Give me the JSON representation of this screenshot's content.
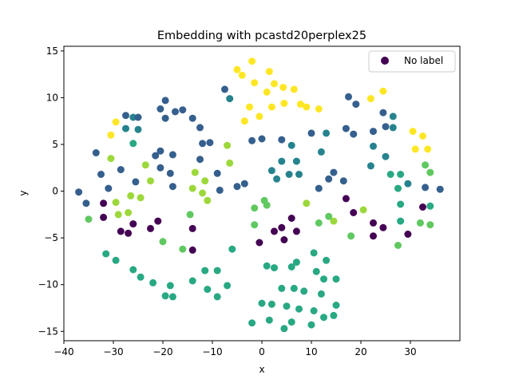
{
  "chart_data": {
    "type": "scatter",
    "title": "Embedding with pcastd20perplex25",
    "xlabel": "x",
    "ylabel": "y",
    "xlim": [
      -40,
      40
    ],
    "ylim": [
      -16,
      15.5
    ],
    "xticks": [
      -40,
      -30,
      -20,
      -10,
      0,
      10,
      20,
      30
    ],
    "yticks": [
      -15,
      -10,
      -5,
      0,
      5,
      10,
      15
    ],
    "grid": false,
    "legend": {
      "entries": [
        "No label"
      ],
      "position": "top-right",
      "marker_color": "#440154"
    },
    "colormap": "viridis",
    "points": [
      {
        "x": -2,
        "y": 13.9,
        "c": 1.0
      },
      {
        "x": -5,
        "y": 13.0,
        "c": 1.0
      },
      {
        "x": -4,
        "y": 12.4,
        "c": 1.0
      },
      {
        "x": 1.5,
        "y": 12.8,
        "c": 1.0
      },
      {
        "x": -1.5,
        "y": 11.6,
        "c": 1.0
      },
      {
        "x": 2.5,
        "y": 11.5,
        "c": 1.0
      },
      {
        "x": 4.3,
        "y": 11.1,
        "c": 1.0
      },
      {
        "x": 6.5,
        "y": 10.9,
        "c": 1.0
      },
      {
        "x": 1.0,
        "y": 10.6,
        "c": 1.0
      },
      {
        "x": 4.5,
        "y": 9.4,
        "c": 1.0
      },
      {
        "x": 2.0,
        "y": 9.0,
        "c": 1.0
      },
      {
        "x": -2.5,
        "y": 9.0,
        "c": 1.0
      },
      {
        "x": -0.5,
        "y": 8.0,
        "c": 1.0
      },
      {
        "x": -3.5,
        "y": 7.5,
        "c": 1.0
      },
      {
        "x": 7.8,
        "y": 9.3,
        "c": 1.0
      },
      {
        "x": 9.0,
        "y": 9.0,
        "c": 1.0
      },
      {
        "x": 11.5,
        "y": 8.8,
        "c": 1.0
      },
      {
        "x": 22.0,
        "y": 9.9,
        "c": 1.0
      },
      {
        "x": 24.5,
        "y": 10.7,
        "c": 1.0
      },
      {
        "x": -29.5,
        "y": 7.4,
        "c": 1.0
      },
      {
        "x": -30.5,
        "y": 6.0,
        "c": 1.0
      },
      {
        "x": 30.5,
        "y": 6.4,
        "c": 1.0
      },
      {
        "x": 32.5,
        "y": 5.9,
        "c": 1.0
      },
      {
        "x": 31.0,
        "y": 4.5,
        "c": 1.0
      },
      {
        "x": 33.5,
        "y": 4.5,
        "c": 1.0
      },
      {
        "x": -30.5,
        "y": 3.5,
        "c": 0.85
      },
      {
        "x": -23.5,
        "y": 2.8,
        "c": 0.85
      },
      {
        "x": -7,
        "y": 4.9,
        "c": 0.85
      },
      {
        "x": -6.5,
        "y": 3.0,
        "c": 0.85
      },
      {
        "x": 9.0,
        "y": -1.3,
        "c": 0.85
      },
      {
        "x": 14.5,
        "y": -3.2,
        "c": 0.85
      },
      {
        "x": 20.5,
        "y": -2.0,
        "c": 0.85
      },
      {
        "x": -22.5,
        "y": 1.1,
        "c": 0.85
      },
      {
        "x": -11.5,
        "y": 1.1,
        "c": 0.85
      },
      {
        "x": -12.0,
        "y": -0.2,
        "c": 0.85
      },
      {
        "x": -11.0,
        "y": -1.0,
        "c": 0.85
      },
      {
        "x": -14.0,
        "y": 0.3,
        "c": 0.85
      },
      {
        "x": -13.5,
        "y": 2.0,
        "c": 0.85
      },
      {
        "x": -24.5,
        "y": -0.7,
        "c": 0.85
      },
      {
        "x": -26.5,
        "y": -0.5,
        "c": 0.85
      },
      {
        "x": -27.0,
        "y": -2.3,
        "c": 0.85
      },
      {
        "x": -29.0,
        "y": -2.5,
        "c": 0.85
      },
      {
        "x": -29.5,
        "y": -1.2,
        "c": 0.85
      },
      {
        "x": -35.0,
        "y": -3.0,
        "c": 0.75
      },
      {
        "x": -14.5,
        "y": -2.5,
        "c": 0.75
      },
      {
        "x": -16.0,
        "y": -6.2,
        "c": 0.75
      },
      {
        "x": -20.0,
        "y": -5.4,
        "c": 0.75
      },
      {
        "x": 1.0,
        "y": -1.5,
        "c": 0.75
      },
      {
        "x": -1.5,
        "y": -1.8,
        "c": 0.75
      },
      {
        "x": -1.5,
        "y": -3.6,
        "c": 0.75
      },
      {
        "x": 11.5,
        "y": -3.4,
        "c": 0.75
      },
      {
        "x": 13.5,
        "y": -2.7,
        "c": 0.75
      },
      {
        "x": 18.0,
        "y": -4.8,
        "c": 0.75
      },
      {
        "x": 33.0,
        "y": 2.8,
        "c": 0.75
      },
      {
        "x": 34.0,
        "y": 2.0,
        "c": 0.75
      },
      {
        "x": 32.0,
        "y": -3.4,
        "c": 0.75
      },
      {
        "x": 34.0,
        "y": -3.6,
        "c": 0.75
      },
      {
        "x": 27.5,
        "y": -5.8,
        "c": 0.75
      },
      {
        "x": 0.5,
        "y": -1.0,
        "c": 0.75
      },
      {
        "x": -31.5,
        "y": -6.7,
        "c": 0.6
      },
      {
        "x": -29.5,
        "y": -7.4,
        "c": 0.6
      },
      {
        "x": -26.0,
        "y": -8.4,
        "c": 0.6
      },
      {
        "x": -24.5,
        "y": -9.2,
        "c": 0.6
      },
      {
        "x": -22.0,
        "y": -9.8,
        "c": 0.6
      },
      {
        "x": -19.5,
        "y": -11.2,
        "c": 0.6
      },
      {
        "x": -18.0,
        "y": -11.3,
        "c": 0.6
      },
      {
        "x": -18.5,
        "y": -10.1,
        "c": 0.6
      },
      {
        "x": -14.0,
        "y": -9.6,
        "c": 0.6
      },
      {
        "x": -11.5,
        "y": -8.5,
        "c": 0.6
      },
      {
        "x": -9.0,
        "y": -8.5,
        "c": 0.6
      },
      {
        "x": -11.0,
        "y": -10.5,
        "c": 0.6
      },
      {
        "x": -9.0,
        "y": -11.3,
        "c": 0.6
      },
      {
        "x": -7.0,
        "y": -10.1,
        "c": 0.6
      },
      {
        "x": 1.0,
        "y": -8.0,
        "c": 0.6
      },
      {
        "x": 2.5,
        "y": -8.2,
        "c": 0.6
      },
      {
        "x": 4.0,
        "y": -10.4,
        "c": 0.6
      },
      {
        "x": 6.0,
        "y": -8.1,
        "c": 0.6
      },
      {
        "x": 7.0,
        "y": -7.6,
        "c": 0.6
      },
      {
        "x": 6.5,
        "y": -10.4,
        "c": 0.6
      },
      {
        "x": 8.5,
        "y": -10.7,
        "c": 0.6
      },
      {
        "x": 10.5,
        "y": -6.6,
        "c": 0.6
      },
      {
        "x": 11.0,
        "y": -8.6,
        "c": 0.6
      },
      {
        "x": 12.5,
        "y": -9.4,
        "c": 0.6
      },
      {
        "x": 13.0,
        "y": -7.4,
        "c": 0.6
      },
      {
        "x": 15.0,
        "y": -9.4,
        "c": 0.6
      },
      {
        "x": 12.0,
        "y": -11.0,
        "c": 0.6
      },
      {
        "x": 10.5,
        "y": -12.8,
        "c": 0.6
      },
      {
        "x": 12.5,
        "y": -13.5,
        "c": 0.6
      },
      {
        "x": 14.5,
        "y": -13.3,
        "c": 0.6
      },
      {
        "x": 15.0,
        "y": -12.2,
        "c": 0.6
      },
      {
        "x": 7.5,
        "y": -12.6,
        "c": 0.6
      },
      {
        "x": 5.0,
        "y": -12.3,
        "c": 0.6
      },
      {
        "x": 2.0,
        "y": -12.1,
        "c": 0.6
      },
      {
        "x": 0.0,
        "y": -12.0,
        "c": 0.6
      },
      {
        "x": 1.5,
        "y": -13.8,
        "c": 0.6
      },
      {
        "x": 4.5,
        "y": -14.7,
        "c": 0.6
      },
      {
        "x": 6.0,
        "y": -14.0,
        "c": 0.6
      },
      {
        "x": 10.0,
        "y": -14.3,
        "c": 0.6
      },
      {
        "x": -2.0,
        "y": -14.1,
        "c": 0.6
      },
      {
        "x": -6.0,
        "y": -6.2,
        "c": 0.6
      },
      {
        "x": 28.0,
        "y": -1.4,
        "c": 0.6
      },
      {
        "x": 28.0,
        "y": -3.2,
        "c": 0.6
      },
      {
        "x": 34.0,
        "y": -1.6,
        "c": 0.6
      },
      {
        "x": 28.0,
        "y": 1.8,
        "c": 0.6
      },
      {
        "x": 26.0,
        "y": 1.8,
        "c": 0.6
      },
      {
        "x": 27.5,
        "y": 0.3,
        "c": 0.6
      },
      {
        "x": -26.0,
        "y": 5.1,
        "c": 0.6
      },
      {
        "x": -27.5,
        "y": 6.7,
        "c": 0.45
      },
      {
        "x": -25.0,
        "y": 6.6,
        "c": 0.45
      },
      {
        "x": -26.0,
        "y": 7.9,
        "c": 0.45
      },
      {
        "x": -6.5,
        "y": 9.9,
        "c": 0.45
      },
      {
        "x": 13.0,
        "y": 6.2,
        "c": 0.45
      },
      {
        "x": 12.0,
        "y": 4.2,
        "c": 0.45
      },
      {
        "x": 6.0,
        "y": 4.9,
        "c": 0.45
      },
      {
        "x": 4.0,
        "y": 3.2,
        "c": 0.45
      },
      {
        "x": 7.0,
        "y": 3.2,
        "c": 0.45
      },
      {
        "x": 2.0,
        "y": 2.2,
        "c": 0.45
      },
      {
        "x": 3.0,
        "y": 1.3,
        "c": 0.45
      },
      {
        "x": 5.5,
        "y": 1.8,
        "c": 0.45
      },
      {
        "x": 7.5,
        "y": 1.8,
        "c": 0.45
      },
      {
        "x": 22.5,
        "y": 4.8,
        "c": 0.45
      },
      {
        "x": 22.0,
        "y": 2.7,
        "c": 0.45
      },
      {
        "x": 25.0,
        "y": 3.7,
        "c": 0.45
      },
      {
        "x": 26.5,
        "y": 8.0,
        "c": 0.45
      },
      {
        "x": 26.5,
        "y": 6.8,
        "c": 0.45
      },
      {
        "x": 29.5,
        "y": 0.8,
        "c": 0.45
      },
      {
        "x": -37.0,
        "y": -0.1,
        "c": 0.3
      },
      {
        "x": -35.5,
        "y": -1.3,
        "c": 0.3
      },
      {
        "x": -33.5,
        "y": 4.1,
        "c": 0.3
      },
      {
        "x": -32.5,
        "y": 1.8,
        "c": 0.3
      },
      {
        "x": -31.0,
        "y": 0.3,
        "c": 0.3
      },
      {
        "x": -28.5,
        "y": 2.3,
        "c": 0.3
      },
      {
        "x": -27.5,
        "y": 8.1,
        "c": 0.3
      },
      {
        "x": -25.0,
        "y": 7.9,
        "c": 0.3
      },
      {
        "x": -20.5,
        "y": 8.8,
        "c": 0.3
      },
      {
        "x": -19.5,
        "y": 9.7,
        "c": 0.3
      },
      {
        "x": -19.5,
        "y": 7.8,
        "c": 0.3
      },
      {
        "x": -17.5,
        "y": 8.5,
        "c": 0.3
      },
      {
        "x": -16.0,
        "y": 8.7,
        "c": 0.3
      },
      {
        "x": -14.0,
        "y": 7.8,
        "c": 0.3
      },
      {
        "x": -12.5,
        "y": 6.8,
        "c": 0.3
      },
      {
        "x": -7.5,
        "y": 10.9,
        "c": 0.3
      },
      {
        "x": -12.0,
        "y": 5.1,
        "c": 0.3
      },
      {
        "x": -10.5,
        "y": 5.2,
        "c": 0.3
      },
      {
        "x": -12.5,
        "y": 3.4,
        "c": 0.3
      },
      {
        "x": -21.5,
        "y": 3.8,
        "c": 0.3
      },
      {
        "x": -20.5,
        "y": 4.3,
        "c": 0.3
      },
      {
        "x": -18.0,
        "y": 3.9,
        "c": 0.3
      },
      {
        "x": -20.5,
        "y": 2.5,
        "c": 0.3
      },
      {
        "x": -18.5,
        "y": 1.9,
        "c": 0.3
      },
      {
        "x": -18.0,
        "y": 0.5,
        "c": 0.3
      },
      {
        "x": -25.5,
        "y": 1.0,
        "c": 0.3
      },
      {
        "x": -9.0,
        "y": 1.9,
        "c": 0.3
      },
      {
        "x": -5.0,
        "y": 0.5,
        "c": 0.3
      },
      {
        "x": -3.5,
        "y": 0.8,
        "c": 0.3
      },
      {
        "x": -8.5,
        "y": 0.1,
        "c": 0.3
      },
      {
        "x": -2.0,
        "y": 5.4,
        "c": 0.3
      },
      {
        "x": 0.0,
        "y": 5.6,
        "c": 0.3
      },
      {
        "x": 4.0,
        "y": 5.5,
        "c": 0.3
      },
      {
        "x": 10.0,
        "y": 6.2,
        "c": 0.3
      },
      {
        "x": 11.5,
        "y": 0.3,
        "c": 0.3
      },
      {
        "x": 13.5,
        "y": 1.3,
        "c": 0.3
      },
      {
        "x": 14.5,
        "y": 2.0,
        "c": 0.3
      },
      {
        "x": 16.5,
        "y": 1.1,
        "c": 0.3
      },
      {
        "x": 17.5,
        "y": 10.1,
        "c": 0.3
      },
      {
        "x": 19.0,
        "y": 9.3,
        "c": 0.3
      },
      {
        "x": 17.0,
        "y": 6.7,
        "c": 0.3
      },
      {
        "x": 18.5,
        "y": 6.1,
        "c": 0.3
      },
      {
        "x": 22.5,
        "y": 6.4,
        "c": 0.3
      },
      {
        "x": 24.5,
        "y": 8.4,
        "c": 0.3
      },
      {
        "x": 25.0,
        "y": 6.9,
        "c": 0.3
      },
      {
        "x": 33.0,
        "y": 0.4,
        "c": 0.3
      },
      {
        "x": 36.0,
        "y": 0.2,
        "c": 0.3
      },
      {
        "x": -28.5,
        "y": -4.3,
        "c": 0.0
      },
      {
        "x": -27.0,
        "y": -4.5,
        "c": 0.0
      },
      {
        "x": -26.0,
        "y": -3.5,
        "c": 0.0
      },
      {
        "x": -32.0,
        "y": -2.8,
        "c": 0.0
      },
      {
        "x": -32.0,
        "y": -1.3,
        "c": 0.0
      },
      {
        "x": -22.5,
        "y": -4.0,
        "c": 0.0
      },
      {
        "x": -21.0,
        "y": -3.2,
        "c": 0.0
      },
      {
        "x": -14.0,
        "y": -6.3,
        "c": 0.0
      },
      {
        "x": -14.0,
        "y": -4.0,
        "c": 0.0
      },
      {
        "x": -0.5,
        "y": -5.5,
        "c": 0.0
      },
      {
        "x": 2.5,
        "y": -4.3,
        "c": 0.0
      },
      {
        "x": 4.0,
        "y": -3.9,
        "c": 0.0
      },
      {
        "x": 4.5,
        "y": -5.2,
        "c": 0.0
      },
      {
        "x": 6.0,
        "y": -2.9,
        "c": 0.0
      },
      {
        "x": 7.0,
        "y": -4.3,
        "c": 0.0
      },
      {
        "x": 18.5,
        "y": -2.3,
        "c": 0.0
      },
      {
        "x": 17.0,
        "y": -0.8,
        "c": 0.0
      },
      {
        "x": 22.5,
        "y": -3.4,
        "c": 0.0
      },
      {
        "x": 22.5,
        "y": -4.8,
        "c": 0.0
      },
      {
        "x": 24.5,
        "y": -3.9,
        "c": 0.0
      },
      {
        "x": 29.5,
        "y": -4.6,
        "c": 0.0
      },
      {
        "x": 32.5,
        "y": -1.7,
        "c": 0.0
      }
    ]
  }
}
